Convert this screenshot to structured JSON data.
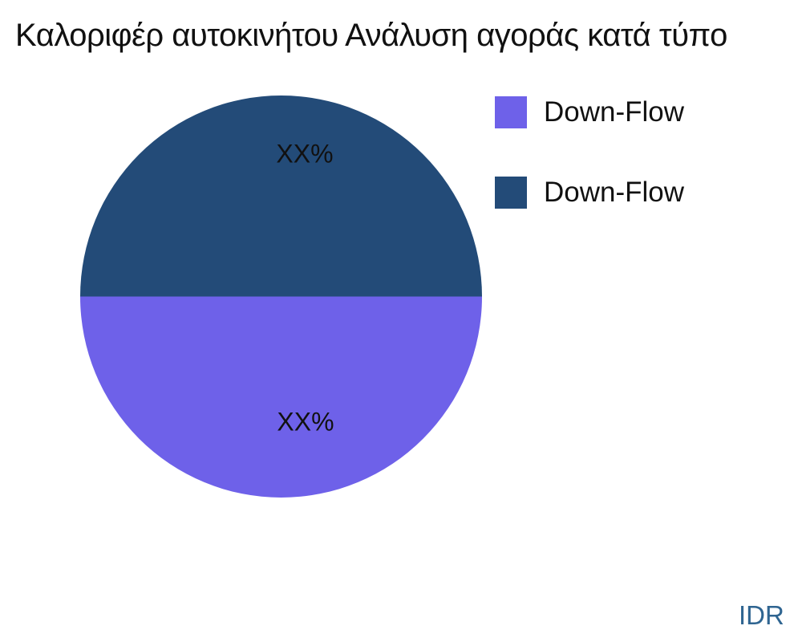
{
  "page": {
    "background": "#ffffff",
    "watermark": "IDR",
    "watermark_color": "#2F6591",
    "text_color": "#111111"
  },
  "chart_data": {
    "type": "pie",
    "title": "Καλοριφέρ αυτοκινήτου Ανάλυση αγοράς κατά τύπο",
    "legend_position": "right",
    "categories": [
      "Down-Flow",
      "Down-Flow"
    ],
    "values": [
      50,
      50
    ],
    "slices": [
      {
        "label": "Down-Flow",
        "value": 50,
        "data_label": "XX%",
        "color": "#6E61E9",
        "half": "bottom"
      },
      {
        "label": "Down-Flow",
        "value": 50,
        "data_label": "XX%",
        "color": "#234B78",
        "half": "top"
      }
    ]
  }
}
